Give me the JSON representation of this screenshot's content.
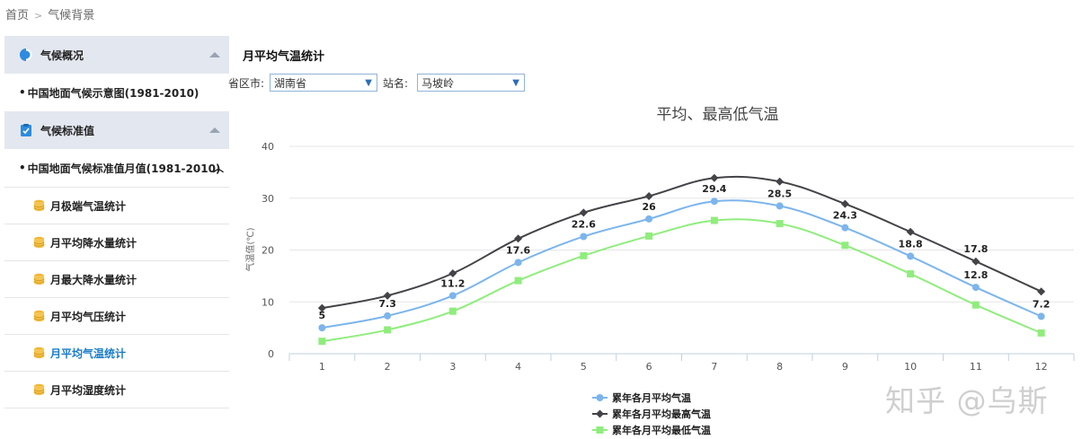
{
  "breadcrumb": {
    "home": "首页",
    "sep": ">",
    "current": "气候背景"
  },
  "sidebar": {
    "section1": {
      "label": "气候概况",
      "icon": "half-circle-icon"
    },
    "item1": "中国地面气候示意图(1981-2010)",
    "section2": {
      "label": "气候标准值",
      "icon": "clipboard-icon"
    },
    "item2": "中国地面气候标准值月值(1981-2010)",
    "subitems": [
      {
        "label": "月极端气温统计"
      },
      {
        "label": "月平均降水量统计"
      },
      {
        "label": "月最大降水量统计"
      },
      {
        "label": "月平均气压统计"
      },
      {
        "label": "月平均气温统计"
      },
      {
        "label": "月平均湿度统计"
      }
    ]
  },
  "main": {
    "title": "月平均气温统计",
    "province_label": "省区市:",
    "province_value": "湖南省",
    "station_label": "站名:",
    "station_value": "马坡岭"
  },
  "watermark": "知乎 @乌斯",
  "chart_data": {
    "type": "line",
    "title": "平均、最高低气温",
    "ylabel": "气温值(℃)",
    "xlabel": "",
    "ylim": [
      0,
      40
    ],
    "yticks": [
      0,
      10,
      20,
      30,
      40
    ],
    "x": [
      1,
      2,
      3,
      4,
      5,
      6,
      7,
      8,
      9,
      10,
      11,
      12
    ],
    "legend_position": "bottom",
    "grid": true,
    "series": [
      {
        "name": "累年各月平均气温",
        "color": "#7cb5ec",
        "marker": "circle",
        "values": [
          5,
          7.3,
          11.2,
          17.6,
          22.6,
          26,
          29.4,
          28.5,
          24.3,
          18.8,
          12.8,
          7.2
        ],
        "labels": [
          "5",
          "7.3",
          "11.2",
          "17.6",
          "22.6",
          "26",
          "29.4",
          "28.5",
          "24.3",
          "18.8",
          "12.8",
          "7.2"
        ]
      },
      {
        "name": "累年各月平均最高气温",
        "color": "#434348",
        "marker": "diamond",
        "values": [
          8.8,
          11.2,
          15.5,
          22.2,
          27.2,
          30.4,
          33.9,
          33.2,
          28.9,
          23.5,
          17.8,
          12
        ]
      },
      {
        "name": "累年各月平均最低气温",
        "color": "#90ed7d",
        "marker": "square",
        "values": [
          2.4,
          4.6,
          8.2,
          14.1,
          18.9,
          22.7,
          25.7,
          25.1,
          20.9,
          15.4,
          9.4,
          4
        ]
      }
    ],
    "extra_labels": [
      {
        "series": 1,
        "index": 10,
        "text": "17.8"
      }
    ]
  }
}
